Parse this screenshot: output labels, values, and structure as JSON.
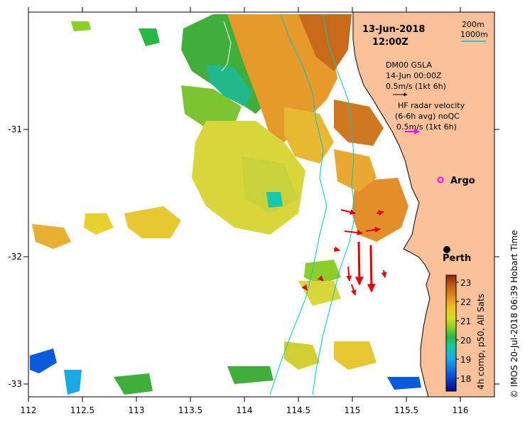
{
  "map": {
    "timestamp_date": "13-Jun-2018",
    "timestamp_time": "12:00Z",
    "region": "Perth coast, Western Australia",
    "x_ticks": [
      "112",
      "112.5",
      "113",
      "113.5",
      "114",
      "114.5",
      "115",
      "115.5",
      "116"
    ],
    "y_ticks": [
      "-31",
      "-32",
      "-33"
    ],
    "contour_legend": {
      "line1": "200m",
      "line2": "1000m",
      "color_200": "#ffffff",
      "color_1000": "#00c8c8"
    },
    "gsla": {
      "title": "DM00 GSLA",
      "date": "14-Jun 00:00Z",
      "scale": "0.5m/s (1kt 6h)"
    },
    "hf_radar": {
      "line1": "HF radar velocity",
      "line2": "(6-6h avg) noQC",
      "scale": "0.5m/s (1kt 6h)",
      "color": "#ff00ff"
    },
    "argo_label": "Argo",
    "city_label": "Perth",
    "credit": "© IMOS 20-Jul-2018 06:39 Hobart Time",
    "colorbar": {
      "title": "4h comp, p50, All Sats",
      "ticks": [
        "23",
        "22",
        "21",
        "20",
        "19",
        "18"
      ],
      "min": 17.5,
      "max": 23.5
    },
    "colors": {
      "land": "#f9c19a",
      "radar_arrow": "#e00000",
      "contour": "#00c8c8"
    }
  }
}
